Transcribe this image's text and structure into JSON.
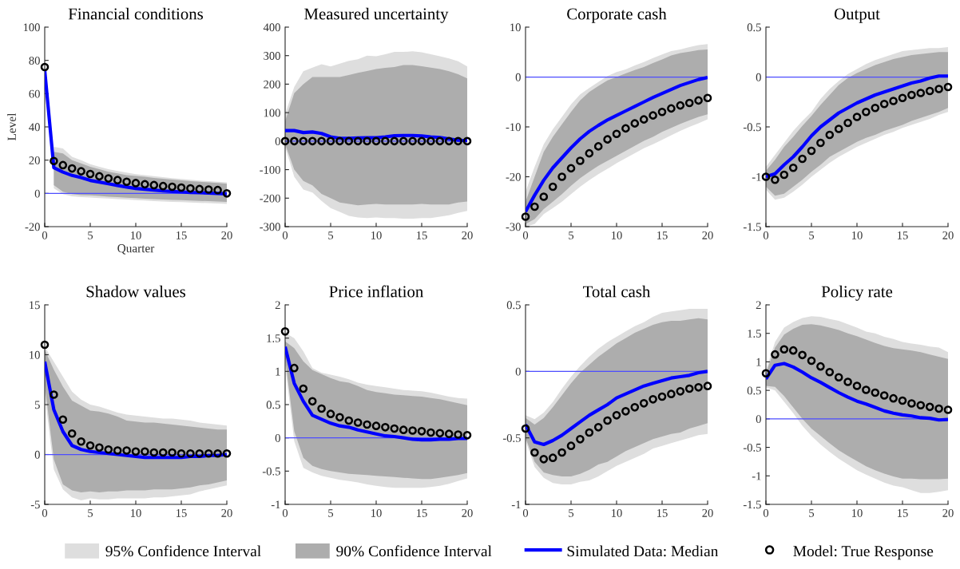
{
  "chart_data": [
    {
      "type": "line",
      "title": "Financial conditions",
      "xlabel": "Quarter",
      "ylabel": "Level",
      "x": [
        0,
        1,
        2,
        3,
        4,
        5,
        6,
        7,
        8,
        9,
        10,
        11,
        12,
        13,
        14,
        15,
        16,
        17,
        18,
        19,
        20
      ],
      "xlim": [
        0,
        20
      ],
      "xticks": [
        0,
        5,
        10,
        15,
        20
      ],
      "ylim": [
        -20,
        100
      ],
      "yticks": [
        -20,
        0,
        20,
        40,
        60,
        80,
        100
      ],
      "ref_lines": [
        {
          "axis": "y",
          "value": 0,
          "color": "#4d4dff"
        }
      ],
      "legend": "bottom",
      "series": [
        {
          "name": "95% Confidence Interval",
          "type": "line",
          "color": "#dedede",
          "values": [
            null,
            null,
            null,
            null,
            null,
            null,
            null,
            null,
            null,
            null,
            null,
            null,
            null,
            null,
            null,
            null,
            null,
            null,
            null,
            null,
            null
          ],
          "lower": [
            null,
            3,
            -0.5,
            -1.8,
            -2.2,
            -2.5,
            -2.8,
            -3.1,
            -3.4,
            -3.7,
            -4,
            -4.3,
            -4.6,
            -4.9,
            -5.1,
            -5.3,
            -5.5,
            -5.7,
            -5.9,
            -6.1,
            -6.3
          ],
          "upper": [
            null,
            28,
            27,
            22,
            20,
            17.5,
            16,
            14.5,
            13.5,
            12.5,
            11.5,
            11,
            10.3,
            9.7,
            9.2,
            8.7,
            8.2,
            7.7,
            7.3,
            7,
            6.6
          ]
        },
        {
          "name": "90% Confidence Interval",
          "type": "line",
          "color": "#adadad",
          "values": [
            null,
            null,
            null,
            null,
            null,
            null,
            null,
            null,
            null,
            null,
            null,
            null,
            null,
            null,
            null,
            null,
            null,
            null,
            null,
            null,
            null
          ],
          "lower": [
            null,
            5,
            1,
            -0.5,
            -1,
            -1.2,
            -1.5,
            -2,
            -2.3,
            -2.6,
            -2.9,
            -3.2,
            -3.5,
            -3.7,
            -3.9,
            -4.1,
            -4.3,
            -4.5,
            -4.7,
            -4.9,
            -5.1
          ],
          "upper": [
            null,
            25,
            24,
            20,
            18,
            16,
            14.5,
            13,
            12,
            11,
            10.5,
            10,
            9.3,
            8.8,
            8.3,
            7.8,
            7.4,
            7,
            6.6,
            6.3,
            5.8
          ]
        },
        {
          "name": "Simulated Data: Median",
          "type": "line",
          "color": "#0000ff",
          "line_style": "solid",
          "values": [
            74,
            15.5,
            12.8,
            10.8,
            9.5,
            7.8,
            6.8,
            5.8,
            4.8,
            3.8,
            3,
            2.5,
            2,
            1.5,
            1.2,
            0.9,
            0.6,
            0.4,
            0.2,
            0,
            -0.3
          ]
        },
        {
          "name": "Model: True Response",
          "type": "scatter",
          "color": "#000000",
          "marker": "circle",
          "values": [
            76,
            19.5,
            17,
            15,
            13.3,
            11.7,
            10.3,
            9,
            8,
            7,
            6.2,
            5.5,
            5,
            4.4,
            4,
            3.5,
            3,
            2.6,
            2.3,
            2,
            0
          ]
        }
      ]
    },
    {
      "type": "line",
      "title": "Measured uncertainty",
      "x": [
        0,
        1,
        2,
        3,
        4,
        5,
        6,
        7,
        8,
        9,
        10,
        11,
        12,
        13,
        14,
        15,
        16,
        17,
        18,
        19,
        20
      ],
      "xlim": [
        0,
        20
      ],
      "xticks": [
        0,
        5,
        10,
        15,
        20
      ],
      "ylim": [
        -300,
        400
      ],
      "yticks": [
        -300,
        -200,
        -100,
        0,
        100,
        200,
        300,
        400
      ],
      "ref_lines": [
        {
          "axis": "y",
          "value": 0,
          "color": "#4d4dff"
        }
      ],
      "series": [
        {
          "type": "line",
          "color": "#dedede",
          "values": [
            null,
            null,
            null,
            null,
            null,
            null,
            null,
            null,
            null,
            null,
            null,
            null,
            null,
            null,
            null,
            null,
            null,
            null,
            null,
            null,
            null
          ],
          "lower": [
            -20,
            -125,
            -170,
            -180,
            -210,
            -235,
            -248,
            -262,
            -268,
            -270,
            -268,
            -270,
            -270,
            -272,
            -272,
            -270,
            -270,
            -265,
            -260,
            -252,
            -245
          ],
          "upper": [
            95,
            190,
            245,
            258,
            270,
            262,
            272,
            282,
            287,
            300,
            298,
            305,
            313,
            313,
            315,
            312,
            305,
            298,
            290,
            280,
            262
          ]
        },
        {
          "type": "line",
          "color": "#adadad",
          "values": [
            null,
            null,
            null,
            null,
            null,
            null,
            null,
            null,
            null,
            null,
            null,
            null,
            null,
            null,
            null,
            null,
            null,
            null,
            null,
            null,
            null
          ],
          "lower": [
            -10,
            -100,
            -140,
            -155,
            -185,
            -200,
            -215,
            -220,
            -225,
            -222,
            -220,
            -222,
            -222,
            -222,
            -222,
            -220,
            -222,
            -222,
            -222,
            -215,
            -212
          ],
          "upper": [
            70,
            168,
            200,
            225,
            225,
            225,
            225,
            232,
            240,
            246,
            253,
            257,
            260,
            267,
            267,
            263,
            258,
            253,
            245,
            235,
            220
          ]
        },
        {
          "type": "line",
          "color": "#0000ff",
          "line_style": "solid",
          "values": [
            37,
            37,
            30,
            32,
            27,
            15,
            10,
            10,
            11,
            12,
            12,
            15,
            19,
            20,
            20,
            18,
            15,
            13,
            8,
            3,
            2
          ]
        },
        {
          "type": "scatter",
          "color": "#000000",
          "marker": "circle",
          "values": [
            0,
            0,
            0,
            0,
            0,
            0,
            0,
            0,
            0,
            0,
            0,
            0,
            0,
            0,
            0,
            0,
            0,
            0,
            0,
            0,
            0
          ]
        }
      ]
    },
    {
      "type": "line",
      "title": "Corporate cash",
      "x": [
        0,
        1,
        2,
        3,
        4,
        5,
        6,
        7,
        8,
        9,
        10,
        11,
        12,
        13,
        14,
        15,
        16,
        17,
        18,
        19,
        20
      ],
      "xlim": [
        0,
        20
      ],
      "xticks": [
        0,
        5,
        10,
        15,
        20
      ],
      "ylim": [
        -30,
        10
      ],
      "yticks": [
        -30,
        -20,
        -10,
        0,
        10
      ],
      "ref_lines": [
        {
          "axis": "y",
          "value": 0,
          "color": "#4d4dff"
        }
      ],
      "series": [
        {
          "type": "line",
          "color": "#dedede",
          "values": [
            null,
            null,
            null,
            null,
            null,
            null,
            null,
            null,
            null,
            null,
            null,
            null,
            null,
            null,
            null,
            null,
            null,
            null,
            null,
            null,
            null
          ],
          "lower": [
            -30,
            -29.5,
            -27.5,
            -26.3,
            -25,
            -23.5,
            -22,
            -20.7,
            -19.5,
            -18.4,
            -17.3,
            -16.3,
            -15.3,
            -14.3,
            -13.5,
            -12.6,
            -11.7,
            -10.8,
            -10,
            -9.3,
            -8.5
          ],
          "upper": [
            -23,
            -18,
            -13.5,
            -10.5,
            -8,
            -5.5,
            -3.5,
            -2.2,
            -1,
            0.2,
            1,
            1.5,
            2.3,
            3,
            3.8,
            4.5,
            5.2,
            5.5,
            6,
            6.4,
            6.6
          ]
        },
        {
          "type": "line",
          "color": "#adadad",
          "values": [
            null,
            null,
            null,
            null,
            null,
            null,
            null,
            null,
            null,
            null,
            null,
            null,
            null,
            null,
            null,
            null,
            null,
            null,
            null,
            null,
            null
          ],
          "lower": [
            -29.5,
            -28.5,
            -26.5,
            -25,
            -23.5,
            -21.8,
            -20.3,
            -19,
            -17.8,
            -16.8,
            -15.8,
            -14.8,
            -13.8,
            -12.8,
            -12,
            -11,
            -10.2,
            -9.4,
            -8.7,
            -8,
            -7.5
          ],
          "upper": [
            -25,
            -20,
            -15,
            -12,
            -9.5,
            -7,
            -4.7,
            -3,
            -1.8,
            -0.7,
            0,
            0.7,
            1.4,
            2,
            2.8,
            3.5,
            4.3,
            4.8,
            5.1,
            5.4,
            5.5
          ]
        },
        {
          "type": "line",
          "color": "#0000ff",
          "line_style": "solid",
          "values": [
            -27,
            -23.7,
            -20.7,
            -18.2,
            -16.2,
            -14.2,
            -12.4,
            -10.9,
            -9.7,
            -8.6,
            -7.7,
            -6.8,
            -5.9,
            -5,
            -4.1,
            -3.3,
            -2.5,
            -1.7,
            -1.1,
            -0.5,
            -0.1
          ]
        },
        {
          "type": "scatter",
          "color": "#000000",
          "marker": "circle",
          "values": [
            -28,
            -26,
            -24,
            -22,
            -20,
            -18.3,
            -16.8,
            -15.3,
            -13.9,
            -12.5,
            -11.4,
            -10.3,
            -9.3,
            -8.5,
            -7.7,
            -7,
            -6.3,
            -5.7,
            -5.2,
            -4.7,
            -4.2
          ]
        }
      ]
    },
    {
      "type": "line",
      "title": "Output",
      "x": [
        0,
        1,
        2,
        3,
        4,
        5,
        6,
        7,
        8,
        9,
        10,
        11,
        12,
        13,
        14,
        15,
        16,
        17,
        18,
        19,
        20
      ],
      "xlim": [
        0,
        20
      ],
      "xticks": [
        0,
        5,
        10,
        15,
        20
      ],
      "ylim": [
        -1.5,
        0.5
      ],
      "yticks": [
        -1.5,
        -1,
        -0.5,
        0,
        0.5
      ],
      "ref_lines": [
        {
          "axis": "y",
          "value": 0,
          "color": "#4d4dff"
        }
      ],
      "series": [
        {
          "type": "line",
          "color": "#dedede",
          "values": [
            null,
            null,
            null,
            null,
            null,
            null,
            null,
            null,
            null,
            null,
            null,
            null,
            null,
            null,
            null,
            null,
            null,
            null,
            null,
            null,
            null
          ],
          "lower": [
            -1.13,
            -1.23,
            -1.21,
            -1.15,
            -1.08,
            -1,
            -0.93,
            -0.86,
            -0.8,
            -0.75,
            -0.7,
            -0.66,
            -0.62,
            -0.58,
            -0.55,
            -0.51,
            -0.48,
            -0.45,
            -0.42,
            -0.38,
            -0.35
          ],
          "upper": [
            -0.9,
            -0.78,
            -0.66,
            -0.54,
            -0.44,
            -0.35,
            -0.22,
            -0.12,
            -0.04,
            0.03,
            0.08,
            0.13,
            0.17,
            0.2,
            0.23,
            0.26,
            0.27,
            0.28,
            0.29,
            0.29,
            0.3
          ]
        },
        {
          "type": "line",
          "color": "#adadad",
          "values": [
            null,
            null,
            null,
            null,
            null,
            null,
            null,
            null,
            null,
            null,
            null,
            null,
            null,
            null,
            null,
            null,
            null,
            null,
            null,
            null,
            null
          ],
          "lower": [
            -1.1,
            -1.19,
            -1.17,
            -1.1,
            -1.03,
            -0.95,
            -0.88,
            -0.8,
            -0.75,
            -0.7,
            -0.65,
            -0.61,
            -0.58,
            -0.54,
            -0.51,
            -0.48,
            -0.44,
            -0.41,
            -0.38,
            -0.35,
            -0.31
          ],
          "upper": [
            -0.94,
            -0.83,
            -0.7,
            -0.6,
            -0.49,
            -0.39,
            -0.28,
            -0.18,
            -0.08,
            -0.01,
            0.04,
            0.08,
            0.12,
            0.15,
            0.18,
            0.2,
            0.22,
            0.23,
            0.24,
            0.25,
            0.25
          ]
        },
        {
          "type": "line",
          "color": "#0000ff",
          "line_style": "solid",
          "values": [
            -1,
            -0.97,
            -0.88,
            -0.8,
            -0.7,
            -0.59,
            -0.5,
            -0.43,
            -0.36,
            -0.31,
            -0.26,
            -0.22,
            -0.18,
            -0.15,
            -0.12,
            -0.09,
            -0.06,
            -0.04,
            -0.01,
            0.01,
            0.01
          ]
        },
        {
          "type": "scatter",
          "color": "#000000",
          "marker": "circle",
          "values": [
            -1,
            -1.03,
            -0.98,
            -0.91,
            -0.82,
            -0.74,
            -0.66,
            -0.58,
            -0.52,
            -0.46,
            -0.4,
            -0.35,
            -0.31,
            -0.27,
            -0.24,
            -0.21,
            -0.18,
            -0.16,
            -0.14,
            -0.12,
            -0.1
          ]
        }
      ]
    },
    {
      "type": "line",
      "title": "Shadow values",
      "x": [
        0,
        1,
        2,
        3,
        4,
        5,
        6,
        7,
        8,
        9,
        10,
        11,
        12,
        13,
        14,
        15,
        16,
        17,
        18,
        19,
        20
      ],
      "xlim": [
        0,
        20
      ],
      "xticks": [
        0,
        5,
        10,
        15,
        20
      ],
      "ylim": [
        -5,
        15
      ],
      "yticks": [
        -5,
        0,
        5,
        10,
        15
      ],
      "ref_lines": [
        {
          "axis": "y",
          "value": 0,
          "color": "#4d4dff"
        }
      ],
      "series": [
        {
          "type": "line",
          "color": "#dedede",
          "values": [
            null,
            null,
            null,
            null,
            null,
            null,
            null,
            null,
            null,
            null,
            null,
            null,
            null,
            null,
            null,
            null,
            null,
            null,
            null,
            null,
            null
          ],
          "lower": [
            6,
            -1.5,
            -3.5,
            -4.3,
            -4.6,
            -4.4,
            -4.5,
            -4.5,
            -4.4,
            -4.4,
            -4.4,
            -4.4,
            -4.3,
            -4.3,
            -4.2,
            -4.1,
            -4,
            -3.7,
            -3.5,
            -3.3,
            -3.1
          ],
          "upper": [
            10.8,
            9.3,
            7.8,
            6.3,
            5.5,
            5,
            4.8,
            4.5,
            4.2,
            4,
            3.9,
            3.8,
            3.7,
            3.6,
            3.6,
            3.5,
            3.4,
            3.2,
            3.1,
            3,
            2.9
          ]
        },
        {
          "type": "line",
          "color": "#adadad",
          "values": [
            null,
            null,
            null,
            null,
            null,
            null,
            null,
            null,
            null,
            null,
            null,
            null,
            null,
            null,
            null,
            null,
            null,
            null,
            null,
            null,
            null
          ],
          "lower": [
            7,
            -0.5,
            -3,
            -3.6,
            -3.8,
            -3.7,
            -3.8,
            -3.7,
            -3.7,
            -3.6,
            -3.6,
            -3.6,
            -3.5,
            -3.5,
            -3.5,
            -3.4,
            -3.3,
            -3.1,
            -3,
            -2.8,
            -2.6
          ],
          "upper": [
            10.5,
            8.5,
            6.8,
            5.4,
            4.9,
            4.4,
            4.3,
            4.1,
            3.8,
            3.4,
            3.3,
            3.2,
            3.2,
            3.1,
            3,
            2.9,
            2.8,
            2.7,
            2.6,
            2.5,
            2.5
          ]
        },
        {
          "type": "line",
          "color": "#0000ff",
          "line_style": "solid",
          "values": [
            9.3,
            4.5,
            2.3,
            0.9,
            0.5,
            0.3,
            0.2,
            0.1,
            0,
            -0.1,
            -0.2,
            -0.3,
            -0.3,
            -0.3,
            -0.3,
            -0.3,
            -0.2,
            -0.2,
            -0.1,
            -0.1,
            0
          ]
        },
        {
          "type": "scatter",
          "color": "#000000",
          "marker": "circle",
          "values": [
            11,
            6,
            3.5,
            2.1,
            1.3,
            0.9,
            0.7,
            0.5,
            0.4,
            0.4,
            0.3,
            0.3,
            0.2,
            0.2,
            0.2,
            0.1,
            0.1,
            0.1,
            0.1,
            0.1,
            0.1
          ]
        }
      ]
    },
    {
      "type": "line",
      "title": "Price inflation",
      "x": [
        0,
        1,
        2,
        3,
        4,
        5,
        6,
        7,
        8,
        9,
        10,
        11,
        12,
        13,
        14,
        15,
        16,
        17,
        18,
        19,
        20
      ],
      "xlim": [
        0,
        20
      ],
      "xticks": [
        0,
        5,
        10,
        15,
        20
      ],
      "ylim": [
        -1,
        2
      ],
      "yticks": [
        -1,
        -0.5,
        0,
        0.5,
        1,
        1.5,
        2
      ],
      "ref_lines": [
        {
          "axis": "y",
          "value": 0,
          "color": "#4d4dff"
        }
      ],
      "series": [
        {
          "type": "line",
          "color": "#dedede",
          "values": [
            null,
            null,
            null,
            null,
            null,
            null,
            null,
            null,
            null,
            null,
            null,
            null,
            null,
            null,
            null,
            null,
            null,
            null,
            null,
            null,
            null
          ],
          "lower": [
            1.1,
            -0.05,
            -0.45,
            -0.52,
            -0.57,
            -0.6,
            -0.63,
            -0.65,
            -0.67,
            -0.7,
            -0.72,
            -0.74,
            -0.75,
            -0.75,
            -0.75,
            -0.75,
            -0.74,
            -0.72,
            -0.69,
            -0.65,
            -0.61
          ],
          "upper": [
            1.58,
            1.5,
            1.3,
            1.05,
            0.98,
            0.95,
            0.92,
            0.88,
            0.83,
            0.8,
            0.78,
            0.76,
            0.74,
            0.72,
            0.71,
            0.7,
            0.68,
            0.65,
            0.62,
            0.6,
            0.59
          ]
        },
        {
          "type": "line",
          "color": "#adadad",
          "values": [
            null,
            null,
            null,
            null,
            null,
            null,
            null,
            null,
            null,
            null,
            null,
            null,
            null,
            null,
            null,
            null,
            null,
            null,
            null,
            null,
            null
          ],
          "lower": [
            1.2,
            0.1,
            -0.3,
            -0.42,
            -0.47,
            -0.5,
            -0.52,
            -0.54,
            -0.55,
            -0.56,
            -0.57,
            -0.58,
            -0.59,
            -0.6,
            -0.61,
            -0.62,
            -0.62,
            -0.6,
            -0.58,
            -0.56,
            -0.53
          ],
          "upper": [
            1.45,
            1.35,
            1.15,
            1.02,
            0.96,
            0.9,
            0.85,
            0.83,
            0.78,
            0.72,
            0.69,
            0.67,
            0.65,
            0.64,
            0.63,
            0.62,
            0.6,
            0.58,
            0.55,
            0.52,
            0.49
          ]
        },
        {
          "type": "line",
          "color": "#0000ff",
          "line_style": "solid",
          "values": [
            1.37,
            0.82,
            0.55,
            0.34,
            0.28,
            0.22,
            0.18,
            0.16,
            0.12,
            0.09,
            0.06,
            0.03,
            0.02,
            0,
            -0.02,
            -0.03,
            -0.03,
            -0.02,
            -0.02,
            -0.01,
            -0.01
          ]
        },
        {
          "type": "scatter",
          "color": "#000000",
          "marker": "circle",
          "values": [
            1.6,
            1.05,
            0.74,
            0.55,
            0.44,
            0.36,
            0.31,
            0.26,
            0.23,
            0.2,
            0.18,
            0.16,
            0.14,
            0.12,
            0.11,
            0.1,
            0.08,
            0.07,
            0.06,
            0.05,
            0.04
          ]
        }
      ]
    },
    {
      "type": "line",
      "title": "Total cash",
      "x": [
        0,
        1,
        2,
        3,
        4,
        5,
        6,
        7,
        8,
        9,
        10,
        11,
        12,
        13,
        14,
        15,
        16,
        17,
        18,
        19,
        20
      ],
      "xlim": [
        0,
        20
      ],
      "xticks": [
        0,
        5,
        10,
        15,
        20
      ],
      "ylim": [
        -1,
        0.5
      ],
      "yticks": [
        -1,
        -0.5,
        0,
        0.5
      ],
      "ref_lines": [
        {
          "axis": "y",
          "value": 0,
          "color": "#4d4dff"
        }
      ],
      "series": [
        {
          "type": "line",
          "color": "#dedede",
          "values": [
            null,
            null,
            null,
            null,
            null,
            null,
            null,
            null,
            null,
            null,
            null,
            null,
            null,
            null,
            null,
            null,
            null,
            null,
            null,
            null,
            null
          ],
          "lower": [
            -0.52,
            -0.72,
            -0.8,
            -0.84,
            -0.85,
            -0.85,
            -0.83,
            -0.82,
            -0.79,
            -0.75,
            -0.71,
            -0.68,
            -0.65,
            -0.62,
            -0.58,
            -0.56,
            -0.54,
            -0.52,
            -0.5,
            -0.48,
            -0.47
          ],
          "upper": [
            -0.33,
            -0.36,
            -0.31,
            -0.23,
            -0.13,
            -0.04,
            0.04,
            0.11,
            0.17,
            0.22,
            0.26,
            0.3,
            0.34,
            0.37,
            0.41,
            0.44,
            0.45,
            0.46,
            0.47,
            0.47,
            0.47
          ]
        },
        {
          "type": "line",
          "color": "#adadad",
          "values": [
            null,
            null,
            null,
            null,
            null,
            null,
            null,
            null,
            null,
            null,
            null,
            null,
            null,
            null,
            null,
            null,
            null,
            null,
            null,
            null,
            null
          ],
          "lower": [
            -0.5,
            -0.68,
            -0.76,
            -0.78,
            -0.79,
            -0.79,
            -0.77,
            -0.74,
            -0.7,
            -0.68,
            -0.64,
            -0.6,
            -0.57,
            -0.54,
            -0.51,
            -0.49,
            -0.47,
            -0.46,
            -0.43,
            -0.41,
            -0.39
          ],
          "upper": [
            -0.35,
            -0.4,
            -0.35,
            -0.27,
            -0.18,
            -0.09,
            -0.01,
            0.05,
            0.11,
            0.16,
            0.21,
            0.25,
            0.29,
            0.32,
            0.35,
            0.37,
            0.38,
            0.38,
            0.39,
            0.4,
            0.39
          ]
        },
        {
          "type": "line",
          "color": "#0000ff",
          "line_style": "solid",
          "values": [
            -0.4,
            -0.53,
            -0.55,
            -0.52,
            -0.48,
            -0.43,
            -0.38,
            -0.33,
            -0.29,
            -0.25,
            -0.2,
            -0.17,
            -0.14,
            -0.11,
            -0.09,
            -0.07,
            -0.05,
            -0.04,
            -0.03,
            -0.01,
            0
          ]
        },
        {
          "type": "scatter",
          "color": "#000000",
          "marker": "circle",
          "values": [
            -0.43,
            -0.61,
            -0.66,
            -0.65,
            -0.61,
            -0.56,
            -0.51,
            -0.46,
            -0.42,
            -0.37,
            -0.33,
            -0.3,
            -0.27,
            -0.24,
            -0.21,
            -0.19,
            -0.17,
            -0.15,
            -0.13,
            -0.12,
            -0.11
          ]
        }
      ]
    },
    {
      "type": "line",
      "title": "Policy rate",
      "x": [
        0,
        1,
        2,
        3,
        4,
        5,
        6,
        7,
        8,
        9,
        10,
        11,
        12,
        13,
        14,
        15,
        16,
        17,
        18,
        19,
        20
      ],
      "xlim": [
        0,
        20
      ],
      "xticks": [
        0,
        5,
        10,
        15,
        20
      ],
      "ylim": [
        -1.5,
        2
      ],
      "yticks": [
        -1.5,
        -1,
        -0.5,
        0,
        0.5,
        1,
        1.5,
        2
      ],
      "ref_lines": [
        {
          "axis": "y",
          "value": 0,
          "color": "#4d4dff"
        }
      ],
      "series": [
        {
          "type": "line",
          "color": "#dedede",
          "values": [
            null,
            null,
            null,
            null,
            null,
            null,
            null,
            null,
            null,
            null,
            null,
            null,
            null,
            null,
            null,
            null,
            null,
            null,
            null,
            null,
            null
          ],
          "lower": [
            0.55,
            0.5,
            0.3,
            0.1,
            -0.12,
            -0.3,
            -0.45,
            -0.58,
            -0.7,
            -0.8,
            -0.9,
            -0.98,
            -1.05,
            -1.12,
            -1.17,
            -1.2,
            -1.25,
            -1.3,
            -1.3,
            -1.28,
            -1.25
          ],
          "upper": [
            0.85,
            1.35,
            1.6,
            1.7,
            1.77,
            1.8,
            1.79,
            1.75,
            1.72,
            1.66,
            1.6,
            1.53,
            1.5,
            1.44,
            1.4,
            1.35,
            1.32,
            1.3,
            1.27,
            1.25,
            1.17
          ]
        },
        {
          "type": "line",
          "color": "#adadad",
          "values": [
            null,
            null,
            null,
            null,
            null,
            null,
            null,
            null,
            null,
            null,
            null,
            null,
            null,
            null,
            null,
            null,
            null,
            null,
            null,
            null,
            null
          ],
          "lower": [
            0.58,
            0.56,
            0.4,
            0.2,
            0,
            -0.17,
            -0.3,
            -0.43,
            -0.55,
            -0.65,
            -0.74,
            -0.83,
            -0.9,
            -0.96,
            -1.01,
            -1.05,
            -1.05,
            -1.06,
            -1.06,
            -1.06,
            -1.05
          ],
          "upper": [
            0.8,
            1.25,
            1.48,
            1.58,
            1.65,
            1.66,
            1.64,
            1.6,
            1.56,
            1.5,
            1.45,
            1.39,
            1.33,
            1.28,
            1.24,
            1.22,
            1.2,
            1.17,
            1.13,
            1.09,
            1.05
          ]
        },
        {
          "type": "line",
          "color": "#0000ff",
          "line_style": "solid",
          "values": [
            0.7,
            0.94,
            0.97,
            0.91,
            0.82,
            0.72,
            0.64,
            0.55,
            0.46,
            0.38,
            0.31,
            0.26,
            0.2,
            0.14,
            0.1,
            0.07,
            0.05,
            0.02,
            0.01,
            -0.02,
            -0.01
          ]
        },
        {
          "type": "scatter",
          "color": "#000000",
          "marker": "circle",
          "values": [
            0.8,
            1.13,
            1.22,
            1.2,
            1.12,
            1.02,
            0.92,
            0.82,
            0.73,
            0.65,
            0.58,
            0.51,
            0.46,
            0.41,
            0.36,
            0.32,
            0.27,
            0.24,
            0.21,
            0.18,
            0.16
          ]
        }
      ]
    }
  ]
}
